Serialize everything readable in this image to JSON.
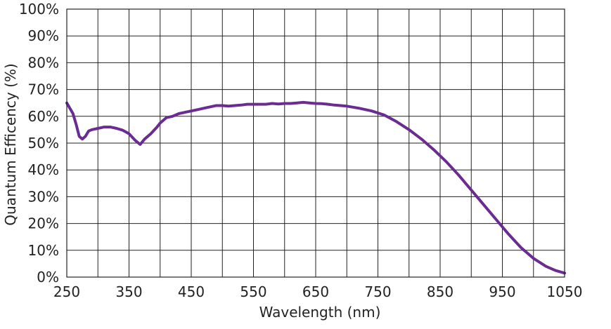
{
  "chart_data": {
    "type": "line",
    "title": "",
    "xlabel": "Wavelength (nm)",
    "ylabel": "Quantum Efficency (%)",
    "xlim": [
      250,
      1050
    ],
    "ylim": [
      0,
      100
    ],
    "grid": true,
    "line_color": "#6a2c91",
    "x_ticks": [
      250,
      350,
      450,
      550,
      650,
      750,
      850,
      950,
      1050
    ],
    "x_tick_labels": [
      "250",
      "350",
      "450",
      "550",
      "650",
      "750",
      "850",
      "950",
      "1050"
    ],
    "y_ticks": [
      0,
      10,
      20,
      30,
      40,
      50,
      60,
      70,
      80,
      90,
      100
    ],
    "y_tick_labels": [
      "0%",
      "10%",
      "20%",
      "30%",
      "40%",
      "50%",
      "60%",
      "70%",
      "80%",
      "90%",
      "100%"
    ],
    "series": [
      {
        "x": [
          250,
          260,
          265,
          270,
          275,
          280,
          285,
          290,
          300,
          310,
          320,
          330,
          340,
          350,
          360,
          368,
          375,
          385,
          395,
          400,
          410,
          420,
          430,
          440,
          450,
          460,
          470,
          480,
          490,
          500,
          510,
          520,
          530,
          540,
          550,
          560,
          570,
          580,
          590,
          600,
          610,
          620,
          630,
          640,
          650,
          660,
          670,
          680,
          690,
          700,
          720,
          740,
          760,
          780,
          800,
          820,
          840,
          860,
          880,
          900,
          920,
          940,
          960,
          980,
          1000,
          1020,
          1035,
          1050
        ],
        "y": [
          65,
          61,
          57,
          52.5,
          51.5,
          52.5,
          54.5,
          55,
          55.5,
          56,
          56,
          55.5,
          54.8,
          53.5,
          51,
          49.5,
          51.5,
          53.5,
          56,
          57.5,
          59.5,
          60,
          61,
          61.5,
          62,
          62.5,
          63,
          63.5,
          64,
          64,
          63.8,
          64,
          64.2,
          64.5,
          64.5,
          64.5,
          64.5,
          64.8,
          64.6,
          64.8,
          64.8,
          65,
          65.2,
          65,
          64.8,
          64.7,
          64.5,
          64.2,
          64,
          63.8,
          63,
          62,
          60.5,
          58,
          55,
          51.5,
          47.5,
          43,
          38,
          32.5,
          27,
          21.5,
          16,
          11,
          7,
          4,
          2.5,
          1.5
        ]
      }
    ]
  }
}
